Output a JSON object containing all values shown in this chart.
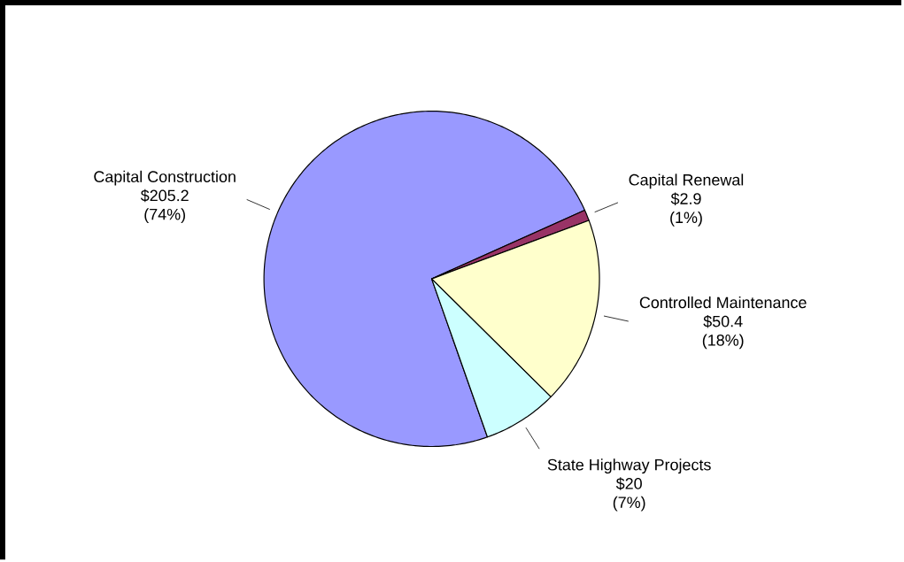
{
  "chart_data": {
    "type": "pie",
    "categories": [
      "Capital Construction",
      "Capital Renewal",
      "Controlled Maintenance",
      "State Highway Projects"
    ],
    "values": [
      205.2,
      2.9,
      50.4,
      20
    ],
    "colors": [
      "#9999ff",
      "#993366",
      "#ffffcc",
      "#ccffff"
    ],
    "value_labels": [
      "$205.2",
      "$2.9",
      "$50.4",
      "$20"
    ],
    "annotations": [
      "(74%)",
      "(1%)",
      "(18%)",
      "(7%)"
    ]
  }
}
